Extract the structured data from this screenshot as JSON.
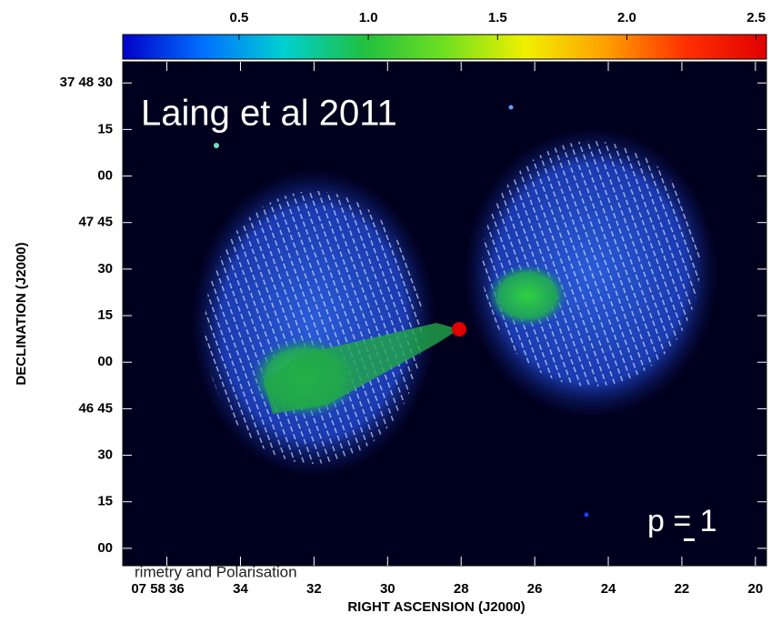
{
  "chart_data": {
    "type": "image",
    "annotations": [
      "Laing et al 2011",
      "p = 1",
      "rimetry and Polarisation"
    ],
    "xlabel": "RIGHT ASCENSION (J2000)",
    "ylabel": "DECLINATION (J2000)",
    "xlim": [
      37.2,
      19.7
    ],
    "xticks": [
      {
        "value": 36,
        "label": "07 58 36"
      },
      34,
      32,
      30,
      28,
      26,
      24,
      22,
      20
    ],
    "ylim": [
      -5.6,
      156.8
    ],
    "yticks": [
      {
        "value": 0,
        "label": "00"
      },
      15,
      30,
      {
        "value": 45,
        "label": "46 45"
      },
      {
        "value": 60,
        "label": "00"
      },
      {
        "value": 75,
        "label": "15"
      },
      {
        "value": 90,
        "label": "30"
      },
      {
        "value": 105,
        "label": "47 45"
      },
      {
        "value": 120,
        "label": "00"
      },
      {
        "value": 135,
        "label": "15"
      },
      {
        "value": 150,
        "label": "37 48 30"
      }
    ],
    "colorbar": {
      "lim": [
        0.05,
        2.54
      ],
      "ticks": [
        0.5,
        {
          "value": 1,
          "label": "1.0"
        },
        1.5,
        {
          "value": 2,
          "label": "2.0"
        },
        2.5
      ],
      "colors": [
        "#0000c8",
        "#0070ff",
        "#00d0d0",
        "#20c040",
        "#70e020",
        "#f0f000",
        "#ffa000",
        "#ff3000",
        "#e00000"
      ]
    }
  }
}
